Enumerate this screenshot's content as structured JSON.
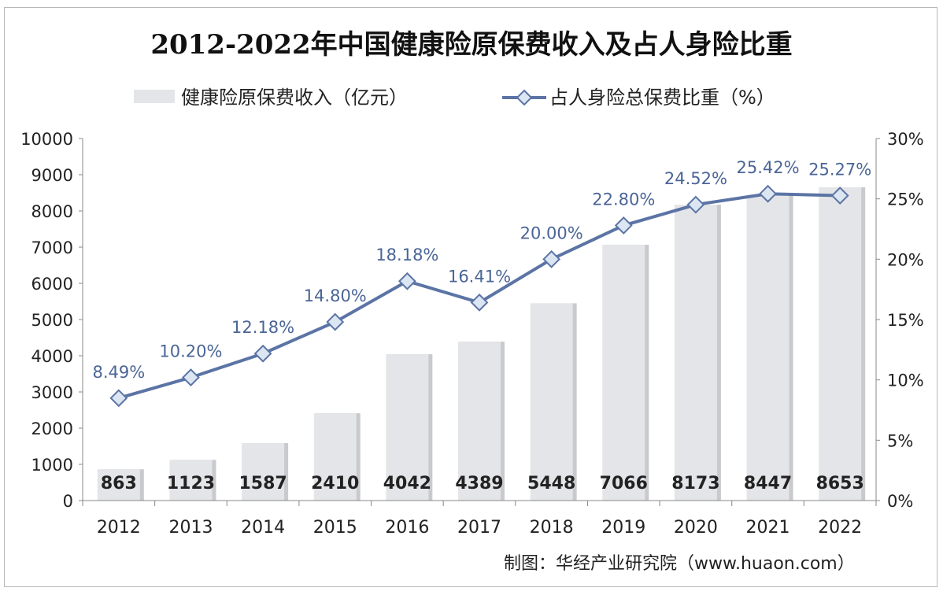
{
  "chart_data": {
    "type": "bar+line",
    "title": "2012-2022年中国健康险原保费收入及占人身险比重",
    "categories": [
      "2012",
      "2013",
      "2014",
      "2015",
      "2016",
      "2017",
      "2018",
      "2019",
      "2020",
      "2021",
      "2022"
    ],
    "series": [
      {
        "name": "健康险原保费收入（亿元）",
        "type": "bar",
        "axis": "left",
        "color": "#e4e5e8",
        "values": [
          863,
          1123,
          1587,
          2410,
          4042,
          4389,
          5448,
          7066,
          8173,
          8447,
          8653
        ],
        "labels": [
          "863",
          "1123",
          "1587",
          "2410",
          "4042",
          "4389",
          "5448",
          "7066",
          "8173",
          "8447",
          "8653"
        ]
      },
      {
        "name": "占人身险总保费比重（%）",
        "type": "line",
        "axis": "right",
        "color": "#5b74a5",
        "values": [
          8.49,
          10.2,
          12.18,
          14.8,
          18.18,
          16.41,
          20.0,
          22.8,
          24.52,
          25.42,
          25.27
        ],
        "labels": [
          "8.49%",
          "10.20%",
          "12.18%",
          "14.80%",
          "18.18%",
          "16.41%",
          "20.00%",
          "22.80%",
          "24.52%",
          "25.42%",
          "25.27%"
        ]
      }
    ],
    "y_left": {
      "range": [
        0,
        10000
      ],
      "ticks": [
        "0",
        "1000",
        "2000",
        "3000",
        "4000",
        "5000",
        "6000",
        "7000",
        "8000",
        "9000",
        "10000"
      ]
    },
    "y_right": {
      "range": [
        0,
        30
      ],
      "ticks": [
        "0%",
        "5%",
        "10%",
        "15%",
        "20%",
        "25%",
        "30%"
      ]
    },
    "grid": false,
    "legend": "top"
  },
  "source": "制图：华经产业研究院（www.huaon.com）",
  "watermark": "华经产业研究院 www.huaon.com"
}
